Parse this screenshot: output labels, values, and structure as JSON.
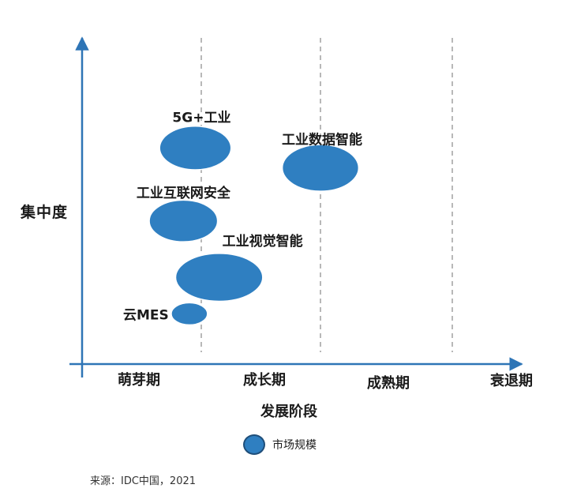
{
  "chart_data": {
    "type": "bubble",
    "xlabel": "发展阶段",
    "ylabel": "集中度",
    "stages": [
      "萌芽期",
      "成长期",
      "成熟期",
      "衰退期"
    ],
    "grid": "vertical dashed stage dividers",
    "series": [
      {
        "points": [
          {
            "label": "5G+工业",
            "stage_position": 0.95,
            "concentration": 0.63,
            "market_size": 3.5
          },
          {
            "label": "工业数据智能",
            "stage_position": 2.0,
            "concentration": 0.57,
            "market_size": 4.0
          },
          {
            "label": "工业互联网安全",
            "stage_position": 0.85,
            "concentration": 0.41,
            "market_size": 3.2
          },
          {
            "label": "工业视觉智能",
            "stage_position": 1.15,
            "concentration": 0.24,
            "market_size": 5.2
          },
          {
            "label": "云MES",
            "stage_position": 0.9,
            "concentration": 0.13,
            "market_size": 0.9
          }
        ]
      }
    ],
    "colors": {
      "bubble_fill": "#2f7fc1",
      "bubble_stroke": "#ffffff",
      "axis": "#2e75b6",
      "grid": "#a6a6a6"
    }
  },
  "legend": {
    "label": "市场规模"
  },
  "source": "来源：IDC中国，2021"
}
